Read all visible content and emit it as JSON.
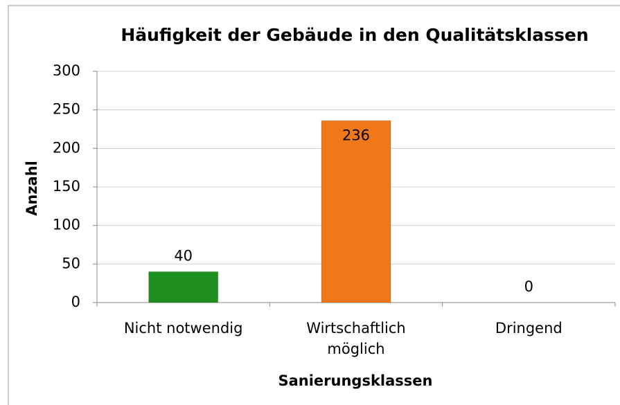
{
  "chart_data": {
    "type": "bar",
    "title": "Häufigkeit der Gebäude in den Qualitätsklassen",
    "x_label": "Sanierungsklassen",
    "y_label": "Anzahl",
    "categories": [
      "Nicht notwendig",
      "Wirtschaftlich möglich",
      "Dringend"
    ],
    "values": [
      40,
      236,
      0
    ],
    "colors": [
      "#1e8f1e",
      "#f07818",
      "#4f81bd"
    ],
    "ylim": [
      0,
      300
    ],
    "yticks": [
      0,
      50,
      100,
      150,
      200,
      250,
      300
    ],
    "grid": true
  }
}
